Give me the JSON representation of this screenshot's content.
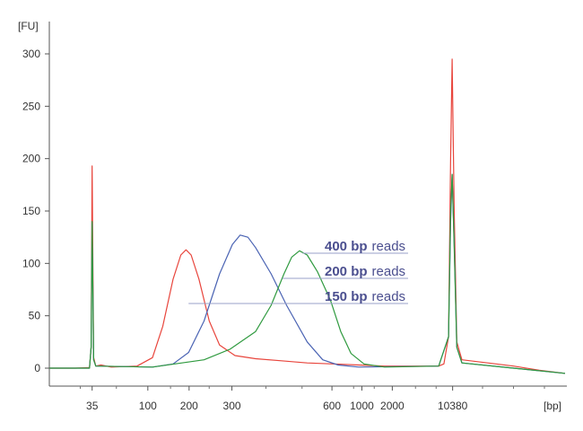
{
  "chart_data": {
    "type": "line",
    "y_unit": "[FU]",
    "x_unit": "[bp]",
    "ylim": [
      -15,
      320
    ],
    "y_ticks": [
      0,
      50,
      100,
      150,
      200,
      250,
      300
    ],
    "x_ticks": [
      {
        "label": "35",
        "pos": 0.083
      },
      {
        "label": "100",
        "pos": 0.191
      },
      {
        "label": "200",
        "pos": 0.271
      },
      {
        "label": "300",
        "pos": 0.354
      },
      {
        "label": "600",
        "pos": 0.548
      },
      {
        "label": "1000",
        "pos": 0.606
      },
      {
        "label": "2000",
        "pos": 0.665
      },
      {
        "label": "10380",
        "pos": 0.782
      }
    ],
    "x_extent": [
      0,
      1
    ],
    "grid": false,
    "colors": {
      "red": "#e8453c",
      "blue": "#4a63b3",
      "green": "#2f9a3f",
      "annotation": "#4b4f8f",
      "leader": "#9aa0c8"
    },
    "series": [
      {
        "color": "red",
        "points": [
          [
            0,
            0
          ],
          [
            0.05,
            0
          ],
          [
            0.078,
            0.5
          ],
          [
            0.081,
            20
          ],
          [
            0.083,
            193
          ],
          [
            0.086,
            10
          ],
          [
            0.09,
            2
          ],
          [
            0.1,
            3
          ],
          [
            0.12,
            1
          ],
          [
            0.17,
            2
          ],
          [
            0.2,
            10
          ],
          [
            0.22,
            40
          ],
          [
            0.24,
            85
          ],
          [
            0.255,
            108
          ],
          [
            0.265,
            113
          ],
          [
            0.275,
            108
          ],
          [
            0.29,
            85
          ],
          [
            0.31,
            45
          ],
          [
            0.33,
            22
          ],
          [
            0.36,
            12
          ],
          [
            0.4,
            9
          ],
          [
            0.45,
            7
          ],
          [
            0.5,
            5
          ],
          [
            0.55,
            4
          ],
          [
            0.6,
            3
          ],
          [
            0.65,
            2
          ],
          [
            0.7,
            2
          ],
          [
            0.755,
            2
          ],
          [
            0.765,
            4
          ],
          [
            0.774,
            30
          ],
          [
            0.778,
            200
          ],
          [
            0.781,
            295
          ],
          [
            0.785,
            150
          ],
          [
            0.79,
            25
          ],
          [
            0.8,
            8
          ],
          [
            0.85,
            5
          ],
          [
            0.9,
            2
          ],
          [
            0.95,
            -2
          ],
          [
            1.0,
            -5
          ]
        ]
      },
      {
        "color": "blue",
        "points": [
          [
            0,
            0
          ],
          [
            0.078,
            0
          ],
          [
            0.081,
            20
          ],
          [
            0.083,
            138
          ],
          [
            0.086,
            8
          ],
          [
            0.09,
            2
          ],
          [
            0.2,
            1
          ],
          [
            0.24,
            4
          ],
          [
            0.27,
            15
          ],
          [
            0.3,
            45
          ],
          [
            0.33,
            90
          ],
          [
            0.355,
            118
          ],
          [
            0.37,
            127
          ],
          [
            0.385,
            125
          ],
          [
            0.4,
            115
          ],
          [
            0.43,
            90
          ],
          [
            0.46,
            60
          ],
          [
            0.5,
            25
          ],
          [
            0.53,
            8
          ],
          [
            0.56,
            3
          ],
          [
            0.6,
            1
          ],
          [
            0.755,
            2
          ],
          [
            0.774,
            30
          ],
          [
            0.778,
            140
          ],
          [
            0.781,
            185
          ],
          [
            0.785,
            120
          ],
          [
            0.79,
            20
          ],
          [
            0.8,
            5
          ],
          [
            0.9,
            0
          ],
          [
            1.0,
            -5
          ]
        ]
      },
      {
        "color": "green",
        "points": [
          [
            0,
            0
          ],
          [
            0.078,
            0
          ],
          [
            0.081,
            20
          ],
          [
            0.083,
            140
          ],
          [
            0.086,
            8
          ],
          [
            0.09,
            2
          ],
          [
            0.2,
            1
          ],
          [
            0.3,
            8
          ],
          [
            0.35,
            18
          ],
          [
            0.4,
            35
          ],
          [
            0.43,
            60
          ],
          [
            0.455,
            90
          ],
          [
            0.47,
            106
          ],
          [
            0.485,
            112
          ],
          [
            0.5,
            108
          ],
          [
            0.52,
            92
          ],
          [
            0.545,
            65
          ],
          [
            0.565,
            35
          ],
          [
            0.585,
            14
          ],
          [
            0.61,
            4
          ],
          [
            0.65,
            1
          ],
          [
            0.755,
            2
          ],
          [
            0.774,
            30
          ],
          [
            0.778,
            150
          ],
          [
            0.781,
            185
          ],
          [
            0.785,
            115
          ],
          [
            0.79,
            20
          ],
          [
            0.8,
            5
          ],
          [
            0.9,
            0
          ],
          [
            1.0,
            -5
          ]
        ]
      }
    ],
    "annotations": [
      {
        "bold": "400 bp",
        "text": "reads",
        "line_from": [
          0.491,
          112
        ]
      },
      {
        "bold": "200 bp",
        "text": "reads",
        "line_from": [
          0.452,
          84
        ]
      },
      {
        "bold": "150 bp",
        "text": "reads",
        "line_from": [
          0.27,
          60
        ]
      }
    ]
  }
}
